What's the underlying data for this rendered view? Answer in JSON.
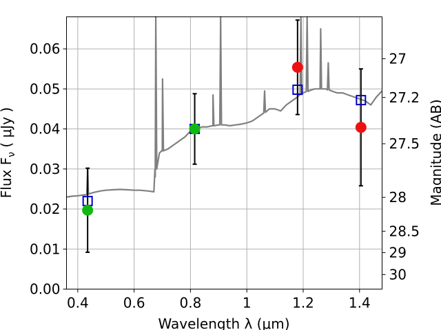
{
  "chart_data": {
    "type": "scatter",
    "title": "",
    "xlabel": "Wavelength  λ (μm)",
    "ylabel": "Flux  F_ν  ( μJy )",
    "ylabel_right": "Magnitude (AB)",
    "xlim": [
      0.36,
      1.48
    ],
    "ylim": [
      0.0,
      0.068
    ],
    "x_ticks": [
      0.4,
      0.6,
      0.8,
      1.0,
      1.2,
      1.4
    ],
    "x_tick_labels": [
      "0.4",
      "0.6",
      "0.8",
      "1",
      "1.2",
      "1.4"
    ],
    "y_ticks": [
      0.0,
      0.01,
      0.02,
      0.03,
      0.04,
      0.05,
      0.06
    ],
    "y_tick_labels": [
      "0.00",
      "0.01",
      "0.02",
      "0.03",
      "0.04",
      "0.05",
      "0.06"
    ],
    "mag_ticks": [
      27,
      27.2,
      27.5,
      28,
      28.5,
      29,
      30
    ],
    "mag_tick_labels": [
      "27",
      "27.2",
      "27.5",
      "28",
      "28.5",
      "29",
      "30"
    ],
    "grid": true,
    "colors": {
      "model": "#808080",
      "blue_box": "#0000cc",
      "green": "#11b811",
      "red": "#ee1111",
      "errorbar": "#000000"
    },
    "model_spectrum": {
      "x": [
        0.36,
        0.38,
        0.4,
        0.42,
        0.43,
        0.44,
        0.46,
        0.48,
        0.5,
        0.52,
        0.55,
        0.58,
        0.6,
        0.62,
        0.65,
        0.67,
        0.675,
        0.68,
        0.69,
        0.7,
        0.72,
        0.74,
        0.76,
        0.78,
        0.8,
        0.82,
        0.84,
        0.86,
        0.88,
        0.9,
        0.92,
        0.94,
        0.96,
        0.98,
        1.0,
        1.02,
        1.04,
        1.06,
        1.08,
        1.1,
        1.12,
        1.14,
        1.16,
        1.18,
        1.2,
        1.22,
        1.24,
        1.26,
        1.28,
        1.3,
        1.32,
        1.34,
        1.36,
        1.38,
        1.4,
        1.42,
        1.44,
        1.46,
        1.48
      ],
      "flux": [
        0.023,
        0.0232,
        0.0233,
        0.0235,
        0.0236,
        0.0238,
        0.0242,
        0.0245,
        0.0247,
        0.0248,
        0.0249,
        0.0248,
        0.0247,
        0.0247,
        0.0245,
        0.0243,
        0.028,
        0.033,
        0.034,
        0.0345,
        0.035,
        0.036,
        0.037,
        0.038,
        0.0395,
        0.04,
        0.0405,
        0.0405,
        0.0408,
        0.041,
        0.041,
        0.0408,
        0.041,
        0.0412,
        0.0415,
        0.042,
        0.043,
        0.044,
        0.045,
        0.045,
        0.0445,
        0.046,
        0.047,
        0.048,
        0.049,
        0.0495,
        0.05,
        0.05,
        0.05,
        0.0495,
        0.049,
        0.049,
        0.0485,
        0.048,
        0.0475,
        0.047,
        0.046,
        0.048,
        0.0495
      ]
    },
    "emission_lines": [
      {
        "x": 0.435,
        "peak": 0.03
      },
      {
        "x": 0.677,
        "peak": 0.07
      },
      {
        "x": 0.701,
        "peak": 0.0525
      },
      {
        "x": 0.88,
        "peak": 0.0485
      },
      {
        "x": 0.907,
        "peak": 0.07
      },
      {
        "x": 1.063,
        "peak": 0.0495
      },
      {
        "x": 1.192,
        "peak": 0.07
      },
      {
        "x": 1.214,
        "peak": 0.07
      },
      {
        "x": 1.262,
        "peak": 0.065
      },
      {
        "x": 1.289,
        "peak": 0.0565
      }
    ],
    "series": [
      {
        "marker": "square",
        "points": [
          {
            "x": 0.435,
            "y": 0.022
          },
          {
            "x": 0.815,
            "y": 0.04
          },
          {
            "x": 1.18,
            "y": 0.0498
          },
          {
            "x": 1.405,
            "y": 0.0472
          }
        ]
      },
      {
        "marker": "circle-green",
        "points": [
          {
            "x": 0.435,
            "y": 0.0197,
            "err": 0.0105
          },
          {
            "x": 0.815,
            "y": 0.04,
            "err": 0.0088
          }
        ]
      },
      {
        "marker": "circle-red",
        "points": [
          {
            "x": 1.18,
            "y": 0.0554,
            "err": 0.0118
          },
          {
            "x": 1.405,
            "y": 0.0404,
            "err": 0.0146
          }
        ]
      }
    ]
  }
}
